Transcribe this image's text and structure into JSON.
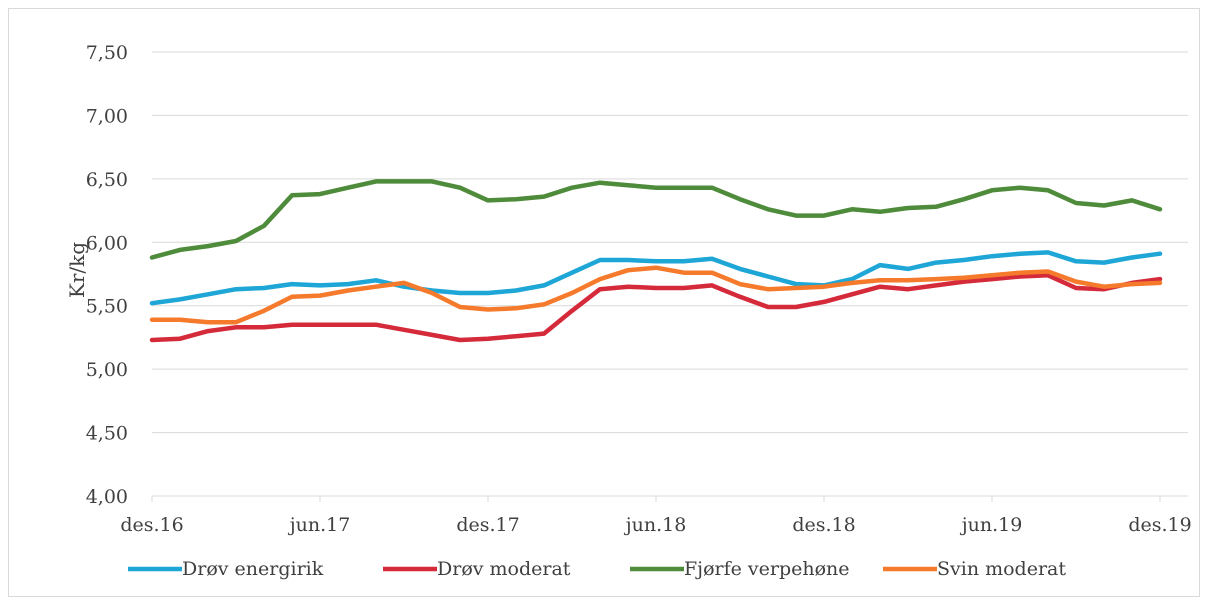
{
  "chart_data": {
    "type": "line",
    "title": "",
    "xlabel": "",
    "ylabel": "Kr/kg",
    "ylim": [
      4.0,
      7.5
    ],
    "yticks": [
      "4,00",
      "4,50",
      "5,00",
      "5,50",
      "6,00",
      "6,50",
      "7,00",
      "7,50"
    ],
    "xticks": [
      "des.16",
      "jun.17",
      "des.17",
      "jun.18",
      "des.18",
      "jun.19",
      "des.19"
    ],
    "grid": true,
    "legend_position": "bottom",
    "x": [
      "2016-12",
      "2017-01",
      "2017-02",
      "2017-03",
      "2017-04",
      "2017-05",
      "2017-06",
      "2017-07",
      "2017-08",
      "2017-09",
      "2017-10",
      "2017-11",
      "2017-12",
      "2018-01",
      "2018-02",
      "2018-03",
      "2018-04",
      "2018-05",
      "2018-06",
      "2018-07",
      "2018-08",
      "2018-09",
      "2018-10",
      "2018-11",
      "2018-12",
      "2019-01",
      "2019-02",
      "2019-03",
      "2019-04",
      "2019-05",
      "2019-06",
      "2019-07",
      "2019-08",
      "2019-09",
      "2019-10",
      "2019-11",
      "2019-12"
    ],
    "series": [
      {
        "name": "Drøv energirik",
        "color": "#1ea6d6",
        "values": [
          5.52,
          5.55,
          5.59,
          5.63,
          5.64,
          5.67,
          5.66,
          5.67,
          5.7,
          5.65,
          5.62,
          5.6,
          5.6,
          5.62,
          5.66,
          5.76,
          5.86,
          5.86,
          5.85,
          5.85,
          5.87,
          5.79,
          5.73,
          5.67,
          5.66,
          5.71,
          5.82,
          5.79,
          5.84,
          5.86,
          5.89,
          5.91,
          5.92,
          5.85,
          5.84,
          5.88,
          5.91
        ]
      },
      {
        "name": "Drøv moderat",
        "color": "#d42a3a",
        "values": [
          5.23,
          5.24,
          5.3,
          5.33,
          5.33,
          5.35,
          5.35,
          5.35,
          5.35,
          5.31,
          5.27,
          5.23,
          5.24,
          5.26,
          5.28,
          5.46,
          5.63,
          5.65,
          5.64,
          5.64,
          5.66,
          5.57,
          5.49,
          5.49,
          5.53,
          5.59,
          5.65,
          5.63,
          5.66,
          5.69,
          5.71,
          5.73,
          5.74,
          5.64,
          5.63,
          5.68,
          5.71
        ]
      },
      {
        "name": "Fjørfe verpehøne",
        "color": "#4e8b3a",
        "values": [
          5.88,
          5.94,
          5.97,
          6.01,
          6.13,
          6.37,
          6.38,
          6.43,
          6.48,
          6.48,
          6.48,
          6.43,
          6.33,
          6.34,
          6.36,
          6.43,
          6.47,
          6.45,
          6.43,
          6.43,
          6.43,
          6.34,
          6.26,
          6.21,
          6.21,
          6.26,
          6.24,
          6.27,
          6.28,
          6.34,
          6.41,
          6.43,
          6.41,
          6.31,
          6.29,
          6.33,
          6.26
        ]
      },
      {
        "name": "Svin moderat",
        "color": "#f57a2b",
        "values": [
          5.39,
          5.39,
          5.37,
          5.37,
          5.46,
          5.57,
          5.58,
          5.62,
          5.65,
          5.68,
          5.6,
          5.49,
          5.47,
          5.48,
          5.51,
          5.6,
          5.71,
          5.78,
          5.8,
          5.76,
          5.76,
          5.67,
          5.63,
          5.64,
          5.65,
          5.68,
          5.7,
          5.7,
          5.71,
          5.72,
          5.74,
          5.76,
          5.77,
          5.69,
          5.65,
          5.67,
          5.68
        ]
      }
    ]
  }
}
